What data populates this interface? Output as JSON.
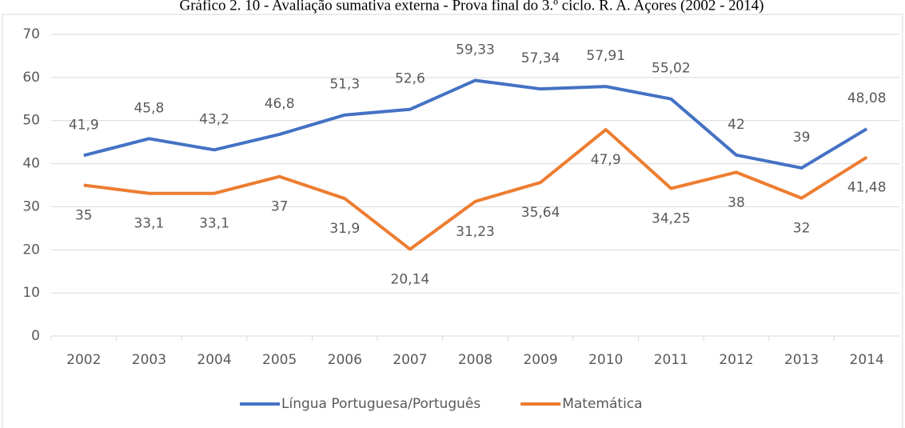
{
  "chart_data": {
    "type": "line",
    "title": "Gráfico 2. 10 - Avaliação sumativa externa - Prova final do 3.º ciclo. R. A. Açores (2002 - 2014)",
    "categories": [
      "2002",
      "2003",
      "2004",
      "2005",
      "2006",
      "2007",
      "2008",
      "2009",
      "2010",
      "2011",
      "2012",
      "2013",
      "2014"
    ],
    "series": [
      {
        "name": "Língua Portuguesa/Português",
        "color": "#4472c4",
        "values": [
          41.9,
          45.8,
          43.2,
          46.8,
          51.3,
          52.6,
          59.33,
          57.34,
          57.91,
          55.02,
          42,
          39,
          48.08
        ],
        "value_labels": [
          "41,9",
          "45,8",
          "43,2",
          "46,8",
          "51,3",
          "52,6",
          "59,33",
          "57,34",
          "57,91",
          "55,02",
          "42",
          "39",
          "48,08"
        ]
      },
      {
        "name": "Matemática",
        "color": "#ed7d31",
        "values": [
          35,
          33.1,
          33.1,
          37,
          31.9,
          20.14,
          31.23,
          35.64,
          47.9,
          34.25,
          38,
          32,
          41.48
        ],
        "value_labels": [
          "35",
          "33,1",
          "33,1",
          "37",
          "31,9",
          "20,14",
          "31,23",
          "35,64",
          "47,9",
          "34,25",
          "38",
          "32",
          "41,48"
        ]
      }
    ],
    "ylim": [
      0,
      70
    ],
    "yticks": [
      0,
      10,
      20,
      30,
      40,
      50,
      60,
      70
    ],
    "grid": true,
    "legend": "bottom"
  }
}
